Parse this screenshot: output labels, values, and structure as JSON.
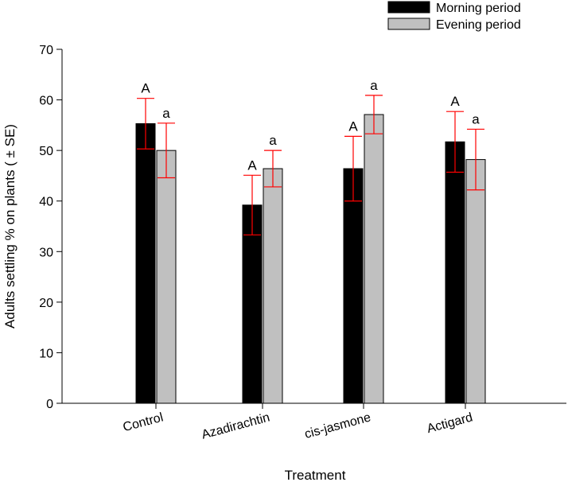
{
  "chart_data": {
    "type": "bar",
    "categories": [
      "Control",
      "Azadirachtin",
      "cis-jasmone",
      "Actigard"
    ],
    "series": [
      {
        "name": "Morning period",
        "values": [
          55.3,
          39.2,
          46.4,
          51.7
        ],
        "errors": [
          5.0,
          5.9,
          6.4,
          6.0
        ],
        "labels": [
          "A",
          "A",
          "A",
          "A"
        ],
        "color": "#000000"
      },
      {
        "name": "Evening period",
        "values": [
          50.0,
          46.4,
          57.1,
          48.2
        ],
        "errors": [
          5.4,
          3.6,
          3.8,
          6.0
        ],
        "labels": [
          "a",
          "a",
          "a",
          "a"
        ],
        "color": "#c0c0c0"
      }
    ],
    "xlabel": "Treatment",
    "ylabel": "Adults settling % on plants ( ± SE)",
    "ylim": [
      0,
      70
    ],
    "yticks": [
      0,
      10,
      20,
      30,
      40,
      50,
      60,
      70
    ],
    "error_bar_color": "#ff0000",
    "grid": false,
    "legend_position": "top-right"
  }
}
